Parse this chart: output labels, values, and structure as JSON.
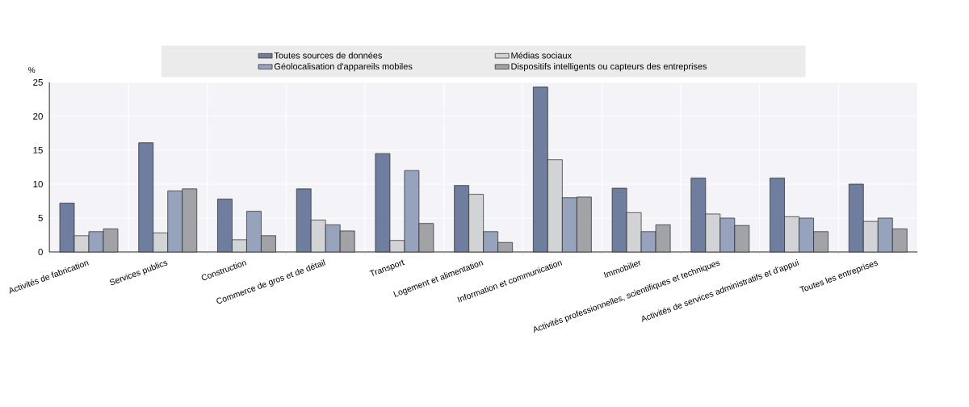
{
  "chart_data": {
    "type": "bar",
    "ylabel": "%",
    "categories": [
      "Activités de fabrication",
      "Services publics",
      "Construction",
      "Commerce de gros et de détail",
      "Transport",
      "Logement et alimentation",
      "Information et communication",
      "Immobilier",
      "Activités professionnelles, scientifiques et techniques",
      "Activités de services administratifs et d'appui",
      "Toutes les entreprises"
    ],
    "series": [
      {
        "name": "Toutes sources de données",
        "color": "#6f7d9e",
        "values": [
          7.2,
          16.1,
          7.8,
          9.3,
          14.5,
          9.8,
          24.3,
          9.4,
          10.9,
          10.9,
          10.0
        ]
      },
      {
        "name": "Médias sociaux",
        "color": "#d2d3d5",
        "values": [
          2.4,
          2.8,
          1.8,
          4.7,
          1.7,
          8.5,
          13.6,
          5.8,
          5.6,
          5.2,
          4.5
        ]
      },
      {
        "name": "Géolocalisation d'appareils mobiles",
        "color": "#97a3bd",
        "values": [
          3.0,
          9.0,
          6.0,
          4.0,
          12.0,
          3.0,
          8.0,
          3.0,
          5.0,
          5.0,
          5.0
        ]
      },
      {
        "name": "Dispositifs intelligents ou capteurs des entreprises",
        "color": "#a2a3a6",
        "values": [
          3.4,
          9.3,
          2.4,
          3.1,
          4.2,
          1.4,
          8.1,
          4.0,
          3.9,
          3.0,
          3.4
        ]
      }
    ],
    "ylim": [
      0,
      25
    ],
    "yticks": [
      0,
      5,
      10,
      15,
      20,
      25
    ],
    "grid": true,
    "legend": "top"
  }
}
